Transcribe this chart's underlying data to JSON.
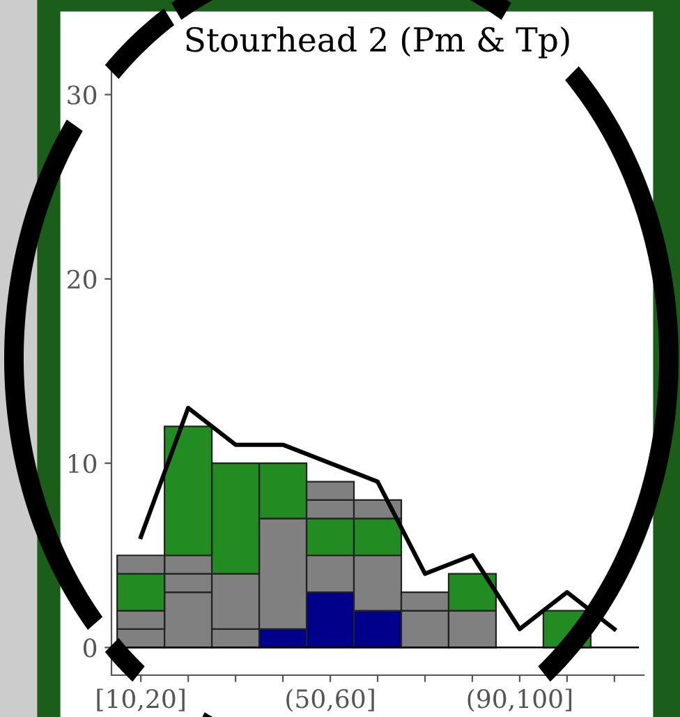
{
  "chart_data": {
    "type": "bar",
    "title": "Stourhead 2 (Pm & Tp)",
    "stacked": true,
    "categories": [
      "[10,20]",
      null,
      null,
      null,
      "(50,60]",
      null,
      null,
      null,
      "(90,100]",
      null,
      null
    ],
    "series": [
      {
        "values": [
          1,
          3,
          1,
          1,
          3,
          2,
          2,
          2,
          null,
          2,
          null
        ],
        "colors": [
          "#808080",
          "#808080",
          "#808080",
          "#00008b",
          "#00008b",
          "#00008b",
          "#808080",
          "#808080",
          null,
          "#228b22",
          null
        ]
      },
      {
        "values": [
          1,
          1,
          3,
          6,
          2,
          3,
          1,
          2,
          null,
          null,
          null
        ],
        "colors": [
          "#808080",
          "#808080",
          "#808080",
          "#808080",
          "#808080",
          "#808080",
          "#808080",
          "#228b22",
          null,
          null,
          null
        ]
      },
      {
        "values": [
          2,
          1,
          6,
          3,
          2,
          2,
          null,
          null,
          null,
          null,
          null
        ],
        "colors": [
          "#228b22",
          "#808080",
          "#228b22",
          "#228b22",
          "#228b22",
          "#228b22",
          null,
          null,
          null,
          null,
          null
        ]
      },
      {
        "values": [
          1,
          7,
          null,
          null,
          1,
          1,
          null,
          null,
          null,
          null,
          null
        ],
        "colors": [
          "#808080",
          "#228b22",
          null,
          null,
          "#808080",
          "#808080",
          null,
          null,
          null,
          null,
          null
        ]
      },
      {
        "values": [
          null,
          null,
          null,
          null,
          1,
          null,
          null,
          null,
          null,
          null,
          null
        ],
        "colors": [
          null,
          null,
          null,
          null,
          "#808080",
          null,
          null,
          null,
          null,
          null,
          null
        ]
      },
      {
        "type": "line",
        "color": "#000000",
        "values": [
          6,
          13,
          11,
          11,
          10,
          9,
          4,
          5,
          1,
          3,
          1
        ]
      }
    ],
    "ylim": [
      -1.5,
      31.5
    ],
    "yticks": [
      0,
      10,
      20,
      30
    ],
    "ref_lines": [
      {
        "axis": "y",
        "value": 0,
        "color": "#000000"
      }
    ]
  }
}
